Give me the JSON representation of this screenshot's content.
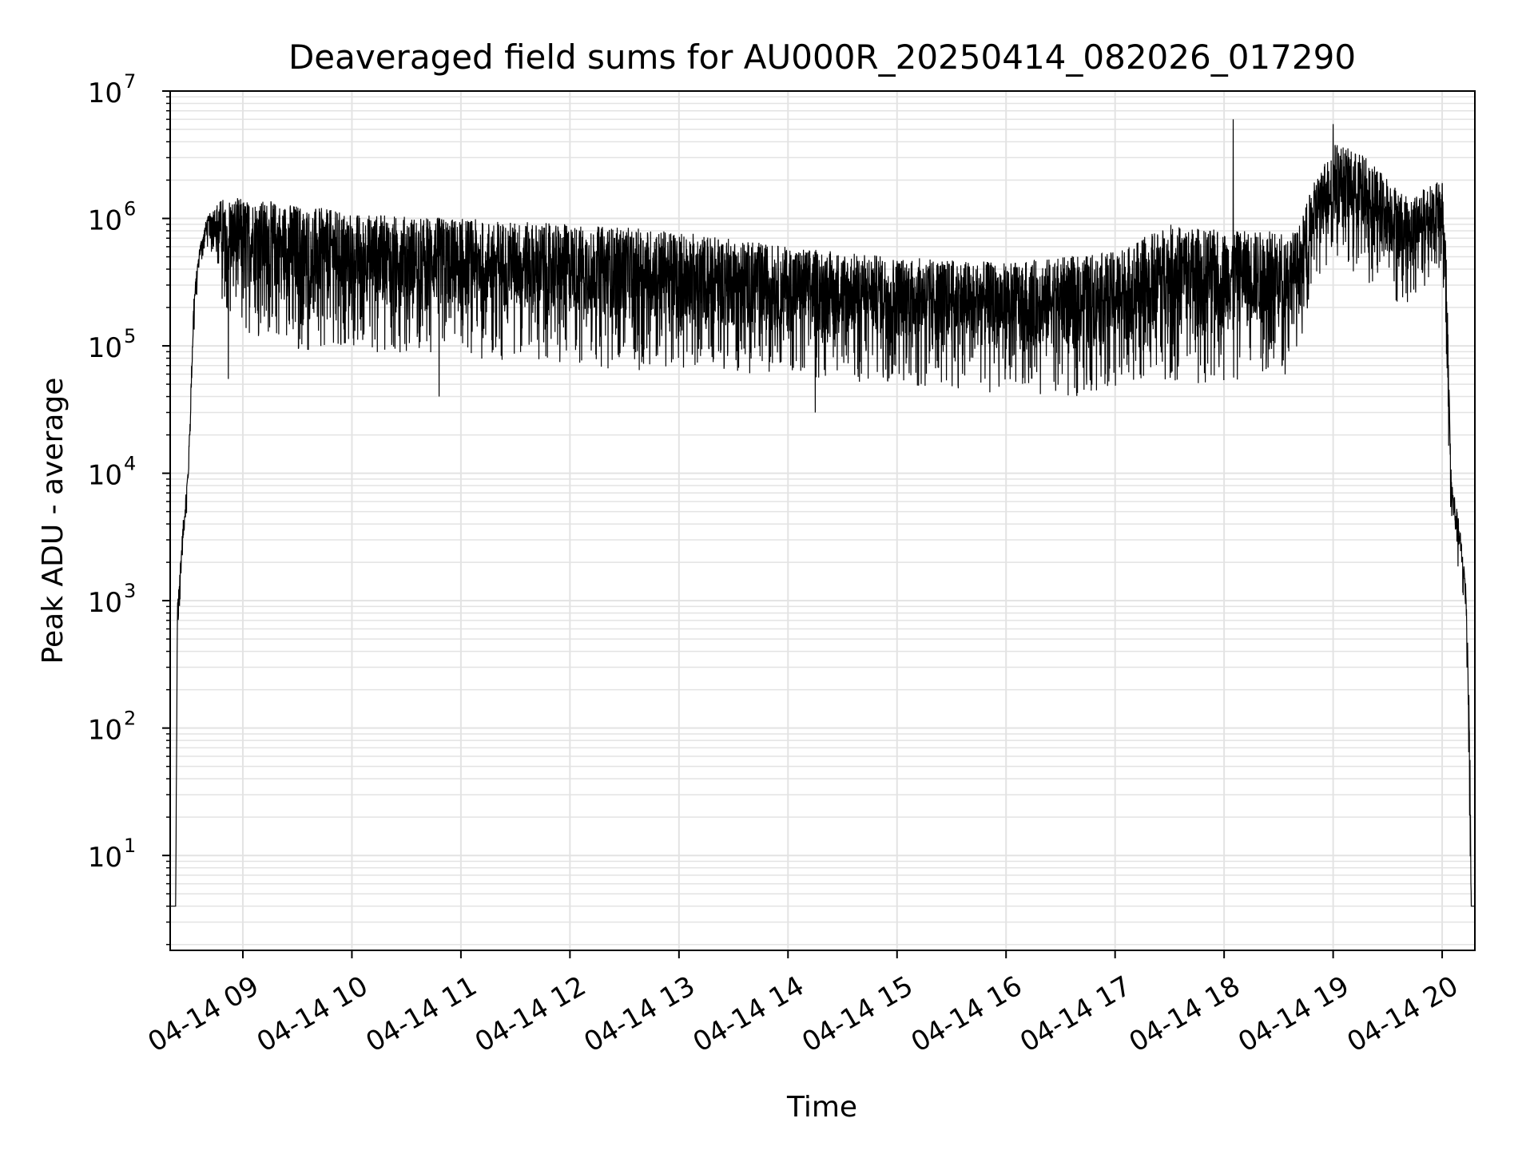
{
  "chart_data": {
    "type": "line",
    "title": "Deaveraged field sums for AU000R_20250414_082026_017290",
    "xlabel": "Time",
    "ylabel": "Peak ADU - average",
    "yscale": "log",
    "ylim": [
      1.8,
      10000000
    ],
    "xlim": [
      "2025-04-14 08:20",
      "2025-04-14 20:18"
    ],
    "grid": true,
    "grid_color": "#e3e3e3",
    "line_color": "#000000",
    "x_ticks": [
      "04-14 09",
      "04-14 10",
      "04-14 11",
      "04-14 12",
      "04-14 13",
      "04-14 14",
      "04-14 15",
      "04-14 16",
      "04-14 17",
      "04-14 18",
      "04-14 19",
      "04-14 20"
    ],
    "x_tick_times": [
      "2025-04-14 09:00",
      "2025-04-14 10:00",
      "2025-04-14 11:00",
      "2025-04-14 12:00",
      "2025-04-14 13:00",
      "2025-04-14 14:00",
      "2025-04-14 15:00",
      "2025-04-14 16:00",
      "2025-04-14 17:00",
      "2025-04-14 18:00",
      "2025-04-14 19:00",
      "2025-04-14 20:00"
    ],
    "y_ticks": [
      {
        "base": "10",
        "exp": "1",
        "value": 10
      },
      {
        "base": "10",
        "exp": "2",
        "value": 100
      },
      {
        "base": "10",
        "exp": "3",
        "value": 1000
      },
      {
        "base": "10",
        "exp": "4",
        "value": 10000
      },
      {
        "base": "10",
        "exp": "5",
        "value": 100000
      },
      {
        "base": "10",
        "exp": "6",
        "value": 1000000
      },
      {
        "base": "10",
        "exp": "7",
        "value": 10000000
      }
    ],
    "series": [
      {
        "line_style": "thin line, high-frequency noise between envelope bounds",
        "envelope": [
          {
            "time": "2025-04-14 08:20",
            "low": 4,
            "high": 4
          },
          {
            "time": "2025-04-14 08:23",
            "low": 4,
            "high": 4
          },
          {
            "time": "2025-04-14 08:24",
            "low": 500,
            "high": 1000
          },
          {
            "time": "2025-04-14 08:27",
            "low": 2000,
            "high": 4000
          },
          {
            "time": "2025-04-14 08:30",
            "low": 7000,
            "high": 12000
          },
          {
            "time": "2025-04-14 08:33",
            "low": 120000,
            "high": 250000
          },
          {
            "time": "2025-04-14 08:36",
            "low": 400000,
            "high": 600000
          },
          {
            "time": "2025-04-14 08:40",
            "low": 600000,
            "high": 1000000
          },
          {
            "time": "2025-04-14 08:45",
            "low": 500000,
            "high": 1300000
          },
          {
            "time": "2025-04-14 08:50",
            "low": 150000,
            "high": 1500000
          },
          {
            "time": "2025-04-14 09:30",
            "low": 90000,
            "high": 1300000
          },
          {
            "time": "2025-04-14 10:00",
            "low": 90000,
            "high": 1100000
          },
          {
            "time": "2025-04-14 11:00",
            "low": 80000,
            "high": 1000000
          },
          {
            "time": "2025-04-14 12:00",
            "low": 70000,
            "high": 900000
          },
          {
            "time": "2025-04-14 13:00",
            "low": 60000,
            "high": 800000
          },
          {
            "time": "2025-04-14 14:00",
            "low": 55000,
            "high": 600000
          },
          {
            "time": "2025-04-14 15:00",
            "low": 50000,
            "high": 500000
          },
          {
            "time": "2025-04-14 16:00",
            "low": 40000,
            "high": 450000
          },
          {
            "time": "2025-04-14 17:00",
            "low": 40000,
            "high": 550000
          },
          {
            "time": "2025-04-14 17:30",
            "low": 50000,
            "high": 900000
          },
          {
            "time": "2025-04-14 18:00",
            "low": 50000,
            "high": 800000
          },
          {
            "time": "2025-04-14 18:40",
            "low": 60000,
            "high": 800000
          },
          {
            "time": "2025-04-14 18:50",
            "low": 300000,
            "high": 2000000
          },
          {
            "time": "2025-04-14 19:00",
            "low": 400000,
            "high": 4000000
          },
          {
            "time": "2025-04-14 19:20",
            "low": 300000,
            "high": 3000000
          },
          {
            "time": "2025-04-14 19:40",
            "low": 200000,
            "high": 1500000
          },
          {
            "time": "2025-04-14 20:00",
            "low": 400000,
            "high": 2000000
          },
          {
            "time": "2025-04-14 20:02",
            "low": 100000,
            "high": 800000
          },
          {
            "time": "2025-04-14 20:05",
            "low": 3000,
            "high": 10000
          },
          {
            "time": "2025-04-14 20:10",
            "low": 1500,
            "high": 3500
          },
          {
            "time": "2025-04-14 20:13",
            "low": 800,
            "high": 1500
          },
          {
            "time": "2025-04-14 20:15",
            "low": 20,
            "high": 200
          },
          {
            "time": "2025-04-14 20:16",
            "low": 4,
            "high": 4
          },
          {
            "time": "2025-04-14 20:18",
            "low": 4,
            "high": 4
          }
        ],
        "spikes": [
          {
            "time": "2025-04-14 18:05",
            "value": 6000000
          },
          {
            "time": "2025-04-14 19:00",
            "value": 5500000
          },
          {
            "time": "2025-04-14 14:15",
            "value": 30000
          },
          {
            "time": "2025-04-14 08:52",
            "value": 55000
          },
          {
            "time": "2025-04-14 10:48",
            "value": 40000
          }
        ]
      }
    ]
  }
}
